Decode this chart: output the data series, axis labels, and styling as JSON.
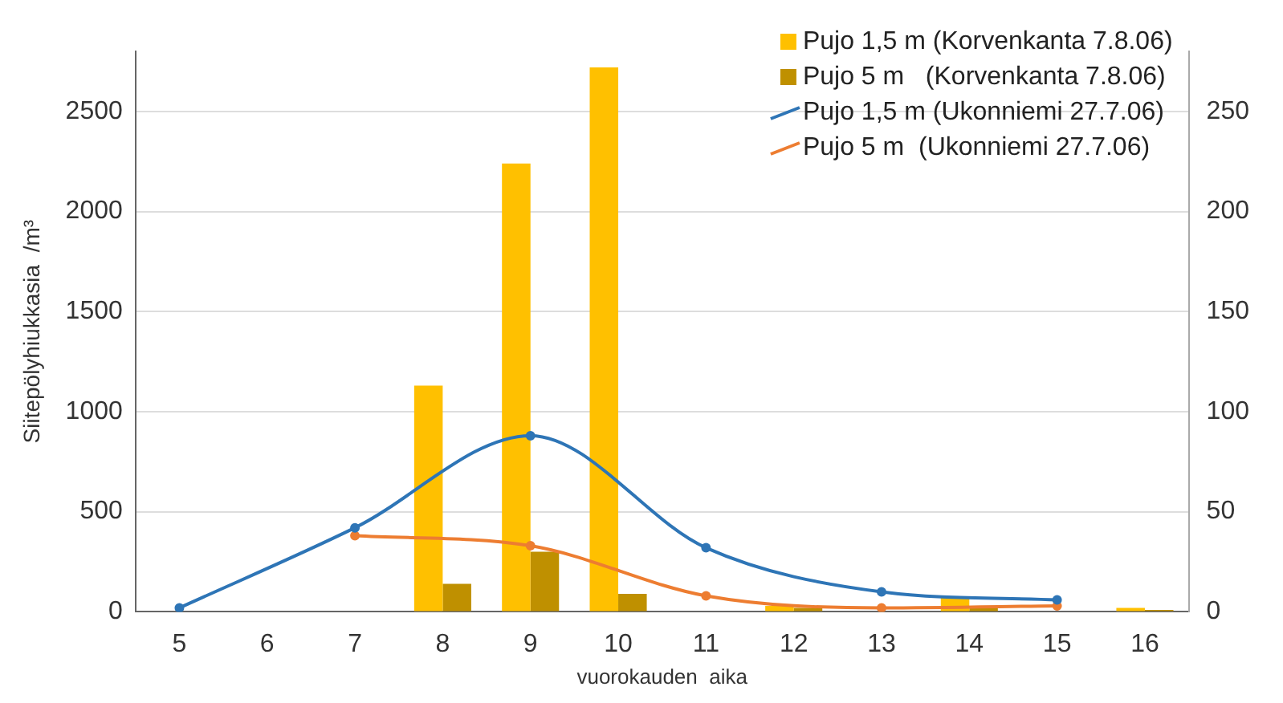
{
  "chart_data": {
    "type": "bar",
    "xlabel": "vuorokauden  aika",
    "ylabel": "Siitepölyhiukkasia  /m³",
    "categories": [
      "5",
      "6",
      "7",
      "8",
      "9",
      "10",
      "11",
      "12",
      "13",
      "14",
      "15",
      "16"
    ],
    "series": [
      {
        "name": "Pujo 1,5 m (Korvenkanta 7.8.06)",
        "color": "#ffc000",
        "values": [
          0,
          0,
          0,
          1130,
          2240,
          2720,
          0,
          30,
          0,
          70,
          0,
          20
        ]
      },
      {
        "name": "Pujo 5 m   (Korvenkanta 7.8.06)",
        "color": "#bf9000",
        "values": [
          0,
          0,
          0,
          140,
          300,
          90,
          0,
          20,
          0,
          20,
          0,
          10
        ]
      },
      {
        "name": "Pujo 1,5 m (Ukonniemi 27.7.06)",
        "type": "line",
        "axis": "y2",
        "color": "#2e75b6",
        "values": [
          2,
          null,
          42,
          null,
          88,
          null,
          32,
          null,
          10,
          null,
          6,
          null
        ]
      },
      {
        "name": "Pujo 5 m  (Ukonniemi 27.7.06)",
        "type": "line",
        "axis": "y2",
        "color": "#ed7d31",
        "values": [
          null,
          null,
          38,
          null,
          33,
          null,
          8,
          null,
          2,
          null,
          3,
          null
        ]
      }
    ],
    "ylim": [
      0,
      2800
    ],
    "yticks": [
      0,
      500,
      1000,
      1500,
      2000,
      2500
    ],
    "y2lim": [
      0,
      280
    ],
    "y2ticks": [
      0,
      50,
      100,
      150,
      200,
      250
    ],
    "grid": "y",
    "legend": "top right",
    "marker": "circle"
  }
}
